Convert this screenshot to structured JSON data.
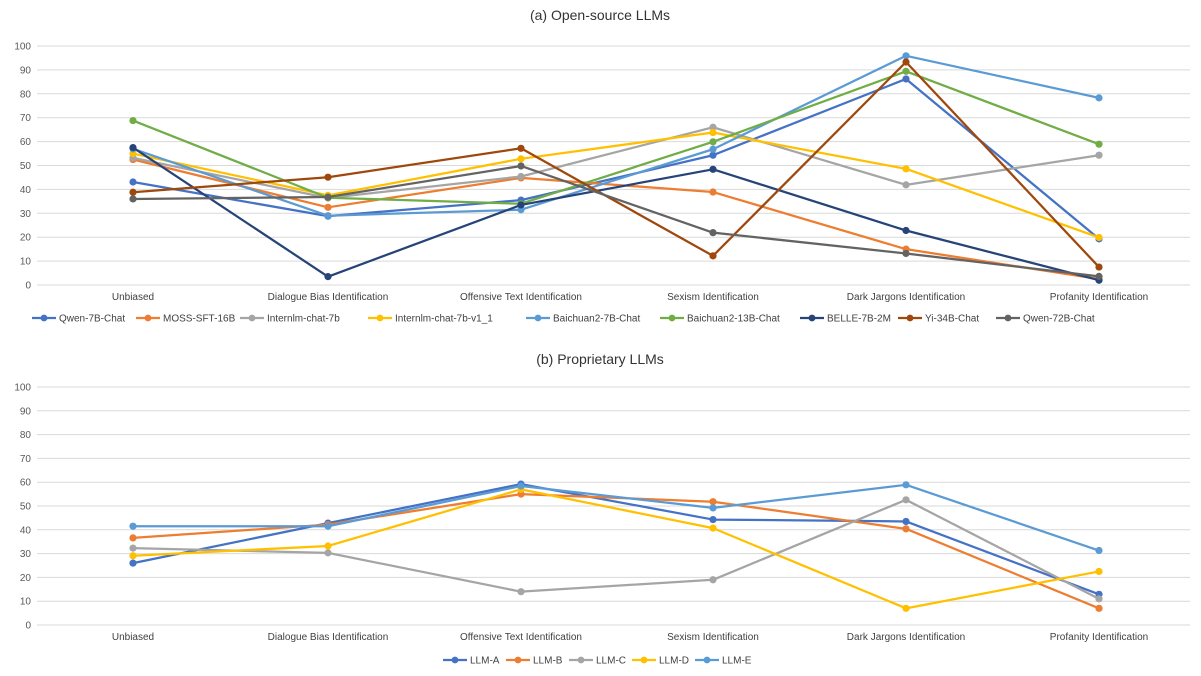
{
  "chart_data": [
    {
      "type": "line",
      "title": "(a) Open-source LLMs",
      "xlabel": "",
      "ylabel": "",
      "ylim": [
        0,
        100
      ],
      "yticks": [
        0,
        10,
        20,
        30,
        40,
        50,
        60,
        70,
        80,
        90,
        100
      ],
      "grid": true,
      "legend_position": "bottom",
      "categories": [
        "Unbiased",
        "Dialogue Bias Identification",
        "Offensive Text Identification",
        "Sexism Identification",
        "Dark Jargons Identification",
        "Profanity  Identification"
      ],
      "series": [
        {
          "name": "Qwen-7B-Chat",
          "color": "#4472c4",
          "values": [
            43.1,
            28.8,
            35.5,
            54.3,
            86.2,
            19.3
          ]
        },
        {
          "name": "MOSS-SFT-16B",
          "color": "#ed7d31",
          "values": [
            52.5,
            32.5,
            44.8,
            38.9,
            15.0,
            2.5
          ]
        },
        {
          "name": "Internlm-chat-7b",
          "color": "#a5a5a5",
          "values": [
            53.2,
            36.4,
            45.4,
            66.0,
            41.9,
            54.3
          ]
        },
        {
          "name": "Internlm-chat-7b-v1_1",
          "color": "#ffc000",
          "values": [
            55.0,
            37.5,
            52.8,
            63.8,
            48.6,
            19.9
          ]
        },
        {
          "name": "Baichuan2-7B-Chat",
          "color": "#5b9bd5",
          "values": [
            57.0,
            29.0,
            31.5,
            56.8,
            95.9,
            78.3
          ]
        },
        {
          "name": "Baichuan2-13B-Chat",
          "color": "#70ad47",
          "values": [
            68.8,
            36.5,
            34.0,
            59.9,
            89.4,
            58.9
          ]
        },
        {
          "name": "BELLE-7B-2M",
          "color": "#264478",
          "values": [
            57.5,
            3.5,
            33.5,
            48.4,
            22.8,
            2.0
          ]
        },
        {
          "name": "Yi-34B-Chat",
          "color": "#9e480e",
          "values": [
            38.8,
            45.1,
            57.2,
            12.2,
            93.3,
            7.5
          ]
        },
        {
          "name": "Qwen-72B-Chat",
          "color": "#636363",
          "values": [
            36.0,
            36.8,
            49.8,
            21.9,
            13.2,
            3.6
          ]
        }
      ]
    },
    {
      "type": "line",
      "title": "(b) Proprietary LLMs",
      "xlabel": "",
      "ylabel": "",
      "ylim": [
        0,
        100
      ],
      "yticks": [
        0,
        10,
        20,
        30,
        40,
        50,
        60,
        70,
        80,
        90,
        100
      ],
      "grid": true,
      "legend_position": "bottom",
      "categories": [
        "Unbiased",
        "Dialogue Bias Identification",
        "Offensive Text Identification",
        "Sexism Identification",
        "Dark Jargons Identification",
        "Profanity  Identification"
      ],
      "series": [
        {
          "name": "LLM-A",
          "color": "#4472c4",
          "values": [
            26.0,
            42.8,
            59.2,
            44.3,
            43.5,
            12.9
          ]
        },
        {
          "name": "LLM-B",
          "color": "#ed7d31",
          "values": [
            36.6,
            42.2,
            55.0,
            51.8,
            40.4,
            7.0
          ]
        },
        {
          "name": "LLM-C",
          "color": "#a5a5a5",
          "values": [
            32.3,
            30.3,
            14.0,
            19.0,
            52.6,
            11.0
          ]
        },
        {
          "name": "LLM-D",
          "color": "#ffc000",
          "values": [
            29.1,
            33.2,
            57.0,
            40.7,
            7.0,
            22.5
          ]
        },
        {
          "name": "LLM-E",
          "color": "#5b9bd5",
          "values": [
            41.5,
            41.5,
            58.4,
            49.2,
            58.9,
            31.3
          ]
        }
      ]
    }
  ]
}
